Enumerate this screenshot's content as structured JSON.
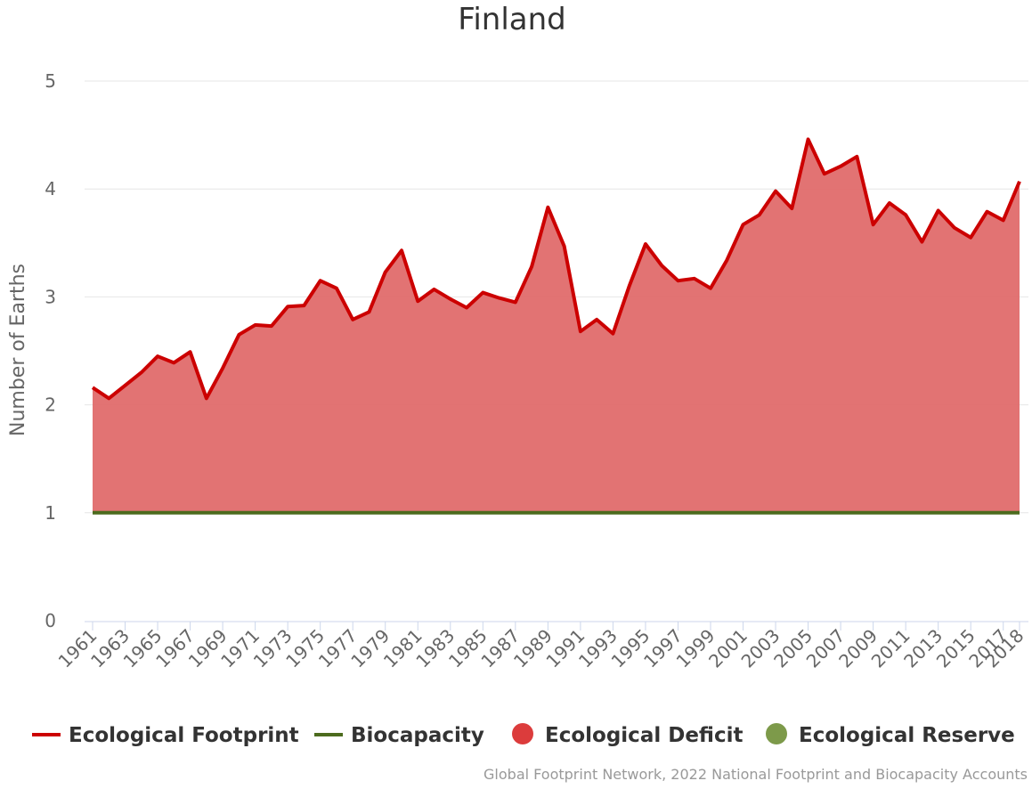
{
  "chart_data": {
    "type": "area",
    "title": "Finland",
    "ylabel": "Number of Earths",
    "xlabel": "",
    "ylim": [
      0,
      5
    ],
    "yticks": [
      "0",
      "1",
      "2",
      "3",
      "4",
      "5"
    ],
    "x": [
      1961,
      1962,
      1963,
      1964,
      1965,
      1966,
      1967,
      1968,
      1969,
      1970,
      1971,
      1972,
      1973,
      1974,
      1975,
      1976,
      1977,
      1978,
      1979,
      1980,
      1981,
      1982,
      1983,
      1984,
      1985,
      1986,
      1987,
      1988,
      1989,
      1990,
      1991,
      1992,
      1993,
      1994,
      1995,
      1996,
      1997,
      1998,
      1999,
      2000,
      2001,
      2002,
      2003,
      2004,
      2005,
      2006,
      2007,
      2008,
      2009,
      2010,
      2011,
      2012,
      2013,
      2014,
      2015,
      2016,
      2017,
      2018
    ],
    "xtick_labels": [
      "1961",
      "1963",
      "1965",
      "1967",
      "1969",
      "1971",
      "1973",
      "1975",
      "1977",
      "1979",
      "1981",
      "1983",
      "1985",
      "1987",
      "1989",
      "1991",
      "1993",
      "1995",
      "1997",
      "1999",
      "2001",
      "2003",
      "2005",
      "2007",
      "2009",
      "2011",
      "2013",
      "2015",
      "2017",
      "2018"
    ],
    "series": [
      {
        "name": "Ecological Footprint",
        "color": "#cc0000",
        "values": [
          2.16,
          2.06,
          2.18,
          2.3,
          2.45,
          2.39,
          2.49,
          2.06,
          2.34,
          2.65,
          2.74,
          2.73,
          2.91,
          2.92,
          3.15,
          3.08,
          2.79,
          2.86,
          3.23,
          3.43,
          2.96,
          3.07,
          2.98,
          2.9,
          3.04,
          2.99,
          2.95,
          3.28,
          3.83,
          3.47,
          2.68,
          2.79,
          2.66,
          3.1,
          3.49,
          3.29,
          3.15,
          3.17,
          3.08,
          3.34,
          3.67,
          3.76,
          3.98,
          3.82,
          4.46,
          4.14,
          4.21,
          4.3,
          3.67,
          3.87,
          3.76,
          3.51,
          3.8,
          3.64,
          3.55,
          3.79,
          3.71,
          4.07
        ]
      },
      {
        "name": "Biocapacity",
        "color": "#4c6b1e",
        "values": [
          1,
          1,
          1,
          1,
          1,
          1,
          1,
          1,
          1,
          1,
          1,
          1,
          1,
          1,
          1,
          1,
          1,
          1,
          1,
          1,
          1,
          1,
          1,
          1,
          1,
          1,
          1,
          1,
          1,
          1,
          1,
          1,
          1,
          1,
          1,
          1,
          1,
          1,
          1,
          1,
          1,
          1,
          1,
          1,
          1,
          1,
          1,
          1,
          1,
          1,
          1,
          1,
          1,
          1,
          1,
          1,
          1,
          1
        ]
      }
    ],
    "legend": [
      {
        "name": "Ecological Footprint",
        "symbol": "line",
        "color": "#cc0000"
      },
      {
        "name": "Biocapacity",
        "symbol": "line",
        "color": "#4c6b1e"
      },
      {
        "name": "Ecological Deficit",
        "symbol": "circle",
        "color": "#dc3c3c"
      },
      {
        "name": "Ecological Reserve",
        "symbol": "circle",
        "color": "#7d9a4a"
      }
    ],
    "deficit_color": "#e06c6c",
    "legend_position": "bottom",
    "grid": true,
    "credit": "Global Footprint Network, 2022 National Footprint and Biocapacity Accounts"
  }
}
